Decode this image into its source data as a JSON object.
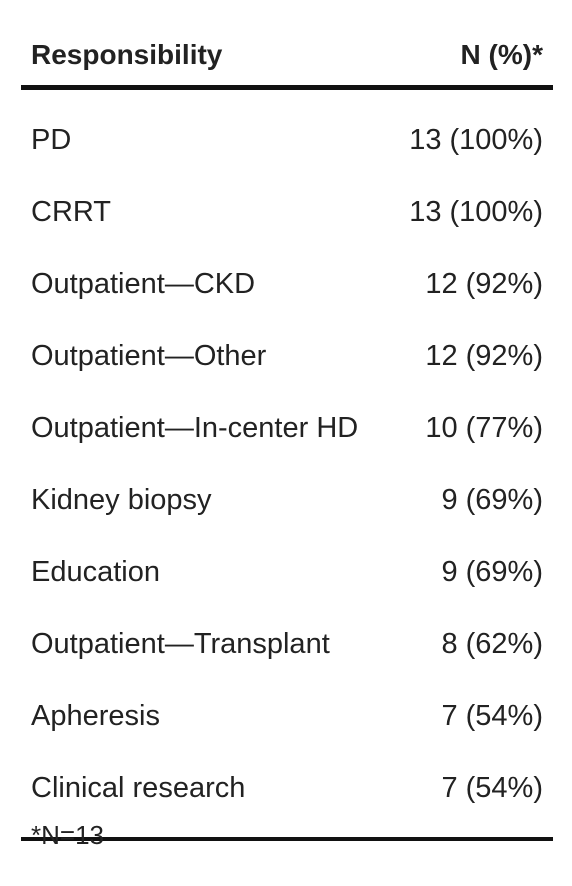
{
  "table": {
    "header": {
      "responsibility": "Responsibility",
      "n_pct": "N (%)*"
    },
    "rows": [
      {
        "responsibility": "PD",
        "n_pct": "13 (100%)"
      },
      {
        "responsibility": "CRRT",
        "n_pct": "13 (100%)"
      },
      {
        "responsibility": "Outpatient—CKD",
        "n_pct": "12 (92%)"
      },
      {
        "responsibility": "Outpatient—Other",
        "n_pct": "12 (92%)"
      },
      {
        "responsibility": "Outpatient—In-center HD",
        "n_pct": "10 (77%)"
      },
      {
        "responsibility": "Kidney biopsy",
        "n_pct": "9 (69%)"
      },
      {
        "responsibility": "Education",
        "n_pct": "9 (69%)"
      },
      {
        "responsibility": "Outpatient—Transplant",
        "n_pct": "8 (62%)"
      },
      {
        "responsibility": "Apheresis",
        "n_pct": "7 (54%)"
      },
      {
        "responsibility": "Clinical research",
        "n_pct": "7 (54%)"
      }
    ],
    "footnote": "*N=13"
  }
}
